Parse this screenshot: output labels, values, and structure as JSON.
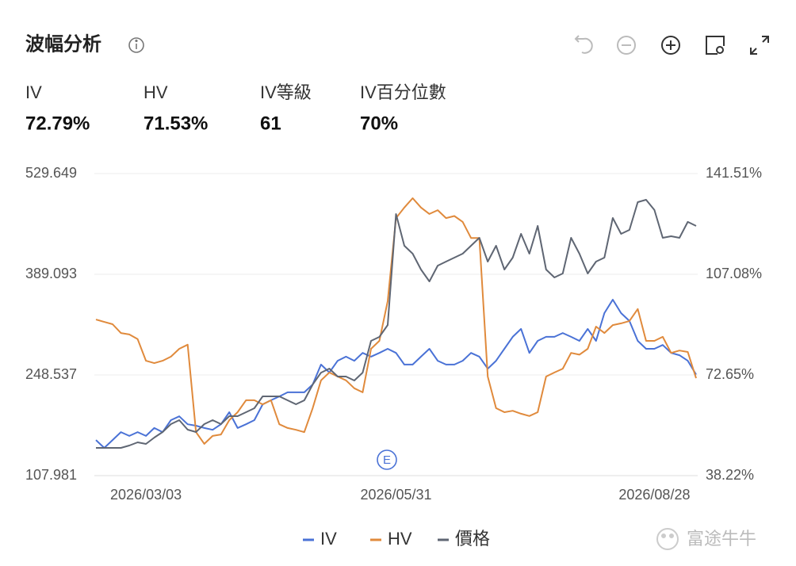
{
  "header": {
    "title": "波幅分析"
  },
  "stats": [
    {
      "label": "IV",
      "value": "72.79%"
    },
    {
      "label": "HV",
      "value": "71.53%"
    },
    {
      "label": "IV等級",
      "value": "61"
    },
    {
      "label": "IV百分位數",
      "value": "70%"
    }
  ],
  "watermark": "富途牛牛",
  "chart_data": {
    "type": "line",
    "annotation": "E",
    "legend": "bottom",
    "grid": true,
    "categories": [
      null,
      null,
      null,
      null,
      null,
      null,
      "2026/03/03",
      null,
      null,
      null,
      null,
      null,
      null,
      null,
      null,
      null,
      null,
      null,
      null,
      null,
      null,
      null,
      null,
      null,
      null,
      null,
      null,
      null,
      null,
      null,
      null,
      null,
      null,
      null,
      null,
      null,
      "2026/05/31",
      null,
      null,
      null,
      null,
      null,
      null,
      null,
      null,
      null,
      null,
      null,
      null,
      null,
      null,
      null,
      null,
      null,
      null,
      null,
      null,
      null,
      null,
      null,
      null,
      null,
      null,
      null,
      null,
      null,
      null,
      "2026/08/28",
      null,
      null,
      null,
      null,
      null
    ],
    "ylim": [
      107.981,
      529.649
    ],
    "yticks": [
      107.981,
      248.537,
      389.093,
      529.649
    ],
    "y2lim": [
      38.22,
      141.51
    ],
    "y2ticks": [
      {
        "value": 38.22,
        "label": "38.22%"
      },
      {
        "value": 72.65,
        "label": "72.65%"
      },
      {
        "value": 107.08,
        "label": "107.08%"
      },
      {
        "value": 141.51,
        "label": "141.51%"
      }
    ],
    "series": [
      {
        "name": "IV",
        "color": "#4a72d6",
        "axis": "y2",
        "values": [
          50.4,
          47.7,
          50.4,
          53.1,
          51.8,
          53.1,
          51.8,
          54.5,
          53.1,
          57.2,
          58.5,
          55.8,
          55.3,
          54.5,
          53.9,
          55.8,
          59.9,
          54.5,
          55.8,
          57.2,
          62.6,
          64.0,
          65.3,
          66.7,
          66.7,
          66.7,
          69.4,
          76.2,
          73.5,
          77.5,
          78.9,
          77.5,
          80.2,
          78.9,
          80.2,
          81.6,
          80.2,
          76.2,
          76.2,
          78.9,
          81.6,
          77.5,
          76.2,
          76.2,
          77.5,
          80.2,
          78.9,
          74.8,
          77.5,
          81.6,
          85.7,
          88.4,
          80.2,
          84.3,
          85.7,
          85.7,
          87.0,
          85.7,
          84.3,
          88.4,
          84.3,
          93.8,
          98.4,
          93.8,
          91.1,
          84.3,
          81.6,
          81.6,
          82.9,
          80.2,
          79.4,
          77.5,
          72.79
        ]
      },
      {
        "name": "HV",
        "color": "#e08a3c",
        "axis": "y2",
        "values": [
          91.6,
          90.8,
          90.0,
          87.0,
          86.5,
          84.9,
          77.5,
          76.7,
          77.5,
          78.9,
          81.6,
          83.0,
          53.1,
          49.1,
          51.8,
          52.3,
          57.2,
          59.9,
          64.0,
          64.0,
          62.6,
          64.0,
          55.8,
          54.5,
          53.9,
          53.1,
          61.3,
          70.8,
          73.5,
          72.1,
          70.8,
          68.1,
          66.7,
          81.6,
          84.3,
          97.9,
          126.3,
          129.9,
          133.1,
          129.9,
          127.7,
          129.0,
          126.3,
          127.0,
          125.0,
          119.5,
          119.5,
          72.1,
          61.3,
          59.9,
          60.4,
          59.4,
          58.6,
          59.9,
          72.1,
          73.5,
          74.8,
          80.2,
          79.6,
          81.6,
          89.2,
          87.0,
          89.7,
          90.3,
          91.1,
          95.2,
          84.3,
          84.3,
          85.7,
          80.2,
          81.0,
          80.5,
          71.53
        ]
      },
      {
        "name": "價格",
        "color": "#5f6673",
        "values": [
          146.7,
          146.7,
          146.7,
          146.7,
          150.0,
          154.5,
          152.2,
          161.1,
          168.9,
          179.9,
          185.5,
          172.2,
          168.9,
          179.9,
          185.5,
          179.9,
          191.0,
          191.0,
          196.5,
          202.1,
          218.6,
          218.6,
          218.6,
          213.1,
          207.6,
          213.1,
          235.2,
          251.8,
          257.4,
          246.3,
          246.3,
          240.8,
          251.8,
          296.1,
          301.7,
          318.3,
          473.2,
          428.9,
          417.9,
          395.7,
          379.1,
          401.2,
          406.8,
          412.3,
          417.9,
          428.9,
          440.0,
          406.8,
          428.9,
          395.7,
          412.3,
          445.5,
          417.9,
          456.6,
          395.7,
          384.7,
          390.2,
          440.0,
          417.9,
          390.2,
          406.8,
          412.3,
          467.7,
          445.5,
          451.1,
          489.8,
          493.1,
          478.8,
          440.0,
          442.2,
          440.0,
          462.2,
          456.6
        ]
      }
    ]
  }
}
